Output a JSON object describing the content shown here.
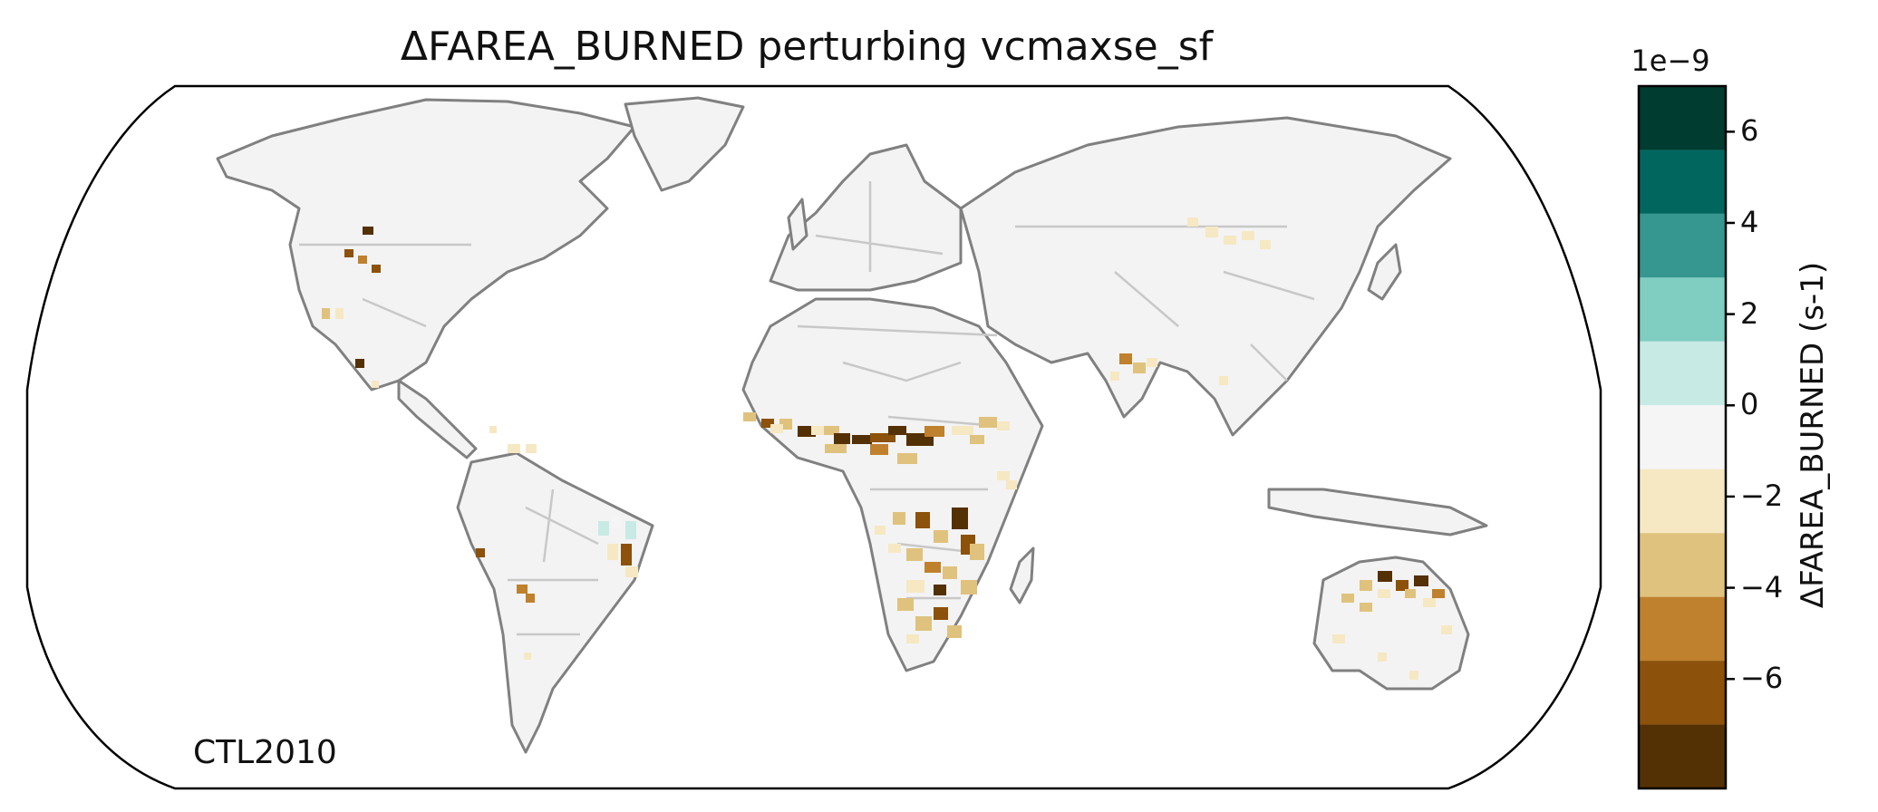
{
  "title": "ΔFAREA_BURNED perturbing vcmaxse_sf",
  "run_label": "CTL2010",
  "colorbar": {
    "label": "ΔFAREA_BURNED (s-1)",
    "multiplier": "1e−9",
    "range": [
      -7,
      7
    ],
    "bins": [
      {
        "from": 5.6,
        "to": 7.0,
        "color": "#003c30"
      },
      {
        "from": 4.2,
        "to": 5.6,
        "color": "#01665e"
      },
      {
        "from": 2.8,
        "to": 4.2,
        "color": "#35978f"
      },
      {
        "from": 1.4,
        "to": 2.8,
        "color": "#80cdc1"
      },
      {
        "from": 0.0,
        "to": 1.4,
        "color": "#c7eae5"
      },
      {
        "from": -1.4,
        "to": 0.0,
        "color": "#f5f5f5"
      },
      {
        "from": -2.8,
        "to": -1.4,
        "color": "#f6e8c3"
      },
      {
        "from": -4.2,
        "to": -2.8,
        "color": "#dfc27d"
      },
      {
        "from": -5.6,
        "to": -4.2,
        "color": "#bf812d"
      },
      {
        "from": -7.0,
        "to": -5.6,
        "color": "#8c510a"
      },
      {
        "from": -8.4,
        "to": -7.0,
        "color": "#543005"
      }
    ],
    "ticks": [
      {
        "value": 6,
        "label": "6"
      },
      {
        "value": 4,
        "label": "4"
      },
      {
        "value": 2,
        "label": "2"
      },
      {
        "value": 0,
        "label": "0"
      },
      {
        "value": -2,
        "label": "−2"
      },
      {
        "value": -4,
        "label": "−4"
      },
      {
        "value": -6,
        "label": "−6"
      }
    ]
  },
  "map": {
    "projection": "Robinson",
    "land_color": "#f3f3f3",
    "coast_color": "#808080",
    "border_color": "#c8c8c8"
  }
}
